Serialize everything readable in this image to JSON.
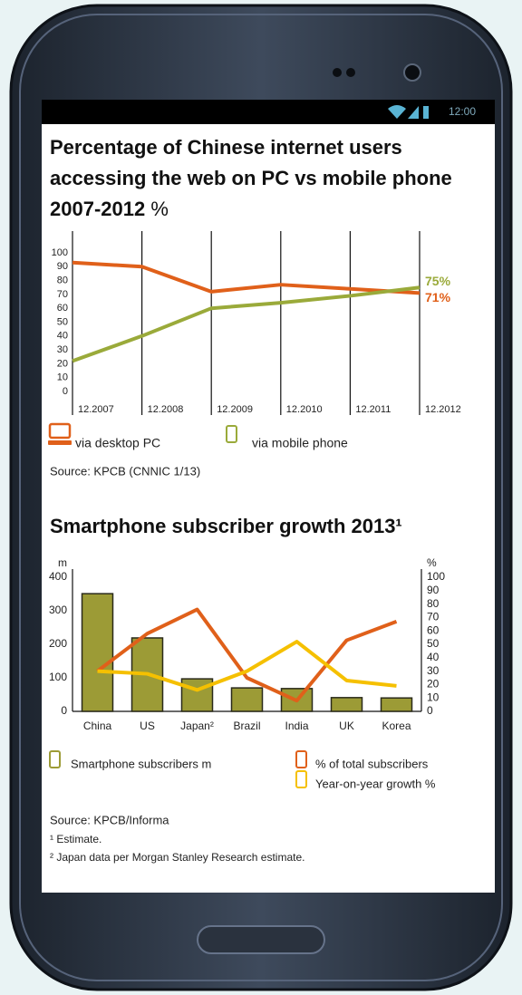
{
  "status_bar": {
    "time": "12:00"
  },
  "chart_data": [
    {
      "type": "line",
      "title": "Percentage of Chinese internet users accessing the web on PC vs mobile phone 2007-2012",
      "ylabel": "%",
      "categories": [
        "12.2007",
        "12.2008",
        "12.2009",
        "12.2010",
        "12.2011",
        "12.2012"
      ],
      "series": [
        {
          "name": "via desktop PC",
          "color": "#e0601a",
          "values": [
            93,
            90,
            72,
            77,
            74,
            71
          ],
          "value_labels": [
            null,
            null,
            null,
            null,
            null,
            "71%"
          ]
        },
        {
          "name": "via mobile phone",
          "color": "#9aaa3a",
          "values": [
            22,
            40,
            60,
            64,
            69,
            75
          ],
          "value_labels": [
            null,
            null,
            null,
            null,
            null,
            "75%"
          ]
        }
      ],
      "ylim": [
        0,
        100
      ],
      "yticks": [
        0,
        10,
        20,
        30,
        40,
        50,
        60,
        70,
        80,
        90,
        100
      ],
      "grid": true,
      "source": "Source: KPCB (CNNIC 1/13)"
    },
    {
      "type": "bar",
      "title": "Smartphone subscriber growth 2013¹",
      "ylabel": "m",
      "y2label": "%",
      "categories": [
        "China",
        "US",
        "Japan²",
        "Brazil",
        "India",
        "UK",
        "Korea"
      ],
      "series": [
        {
          "name": "Smartphone subscribers m",
          "color": "#9c9b36",
          "values": [
            351,
            219,
            97,
            70,
            68,
            41,
            40
          ]
        },
        {
          "name": "% of total subscribers",
          "color": "#e0601a",
          "type": "line",
          "axis": "y2",
          "values": [
            30,
            58,
            76,
            25,
            8,
            53,
            67
          ]
        },
        {
          "name": "Year-on-year growth %",
          "color": "#f5c000",
          "type": "line",
          "axis": "y2",
          "values": [
            30,
            28,
            16,
            30,
            52,
            23,
            19
          ]
        }
      ],
      "ylim": [
        0,
        400
      ],
      "yticks": [
        0,
        100,
        200,
        300,
        400
      ],
      "y2lim": [
        0,
        100
      ],
      "y2ticks": [
        0,
        10,
        20,
        30,
        40,
        50,
        60,
        70,
        80,
        90,
        100
      ],
      "source": "Source: KPCB/Informa",
      "notes": [
        "¹ Estimate.",
        "² Japan data per Morgan Stanley Research estimate."
      ]
    }
  ]
}
